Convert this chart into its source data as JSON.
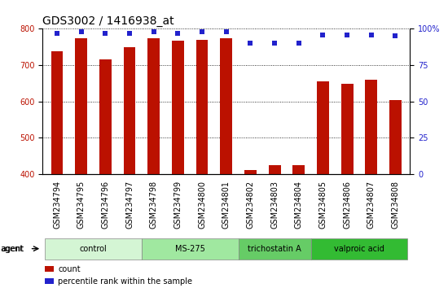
{
  "title": "GDS3002 / 1416938_at",
  "samples": [
    "GSM234794",
    "GSM234795",
    "GSM234796",
    "GSM234797",
    "GSM234798",
    "GSM234799",
    "GSM234800",
    "GSM234801",
    "GSM234802",
    "GSM234803",
    "GSM234804",
    "GSM234805",
    "GSM234806",
    "GSM234807",
    "GSM234808"
  ],
  "counts": [
    738,
    775,
    716,
    750,
    775,
    768,
    770,
    775,
    412,
    424,
    425,
    656,
    648,
    660,
    604
  ],
  "percentiles": [
    97,
    98,
    97,
    97,
    98,
    97,
    98,
    98,
    90,
    90,
    90,
    96,
    96,
    96,
    95
  ],
  "groups": [
    {
      "label": "control",
      "start": 0,
      "end": 4,
      "color": "#d4f5d4"
    },
    {
      "label": "MS-275",
      "start": 4,
      "end": 8,
      "color": "#a0e8a0"
    },
    {
      "label": "trichostatin A",
      "start": 8,
      "end": 11,
      "color": "#66cc66"
    },
    {
      "label": "valproic acid",
      "start": 11,
      "end": 15,
      "color": "#33bb33"
    }
  ],
  "bar_color": "#bb1100",
  "dot_color": "#2222cc",
  "ylim_left": [
    400,
    800
  ],
  "ylim_right": [
    0,
    100
  ],
  "yticks_left": [
    400,
    500,
    600,
    700,
    800
  ],
  "yticks_right": [
    0,
    25,
    50,
    75,
    100
  ],
  "background_color": "#ffffff",
  "plot_bg_color": "#ffffff",
  "grid_color": "#000000",
  "title_fontsize": 10,
  "tick_fontsize": 7,
  "label_fontsize": 7,
  "bar_width": 0.5,
  "agent_label": "agent"
}
